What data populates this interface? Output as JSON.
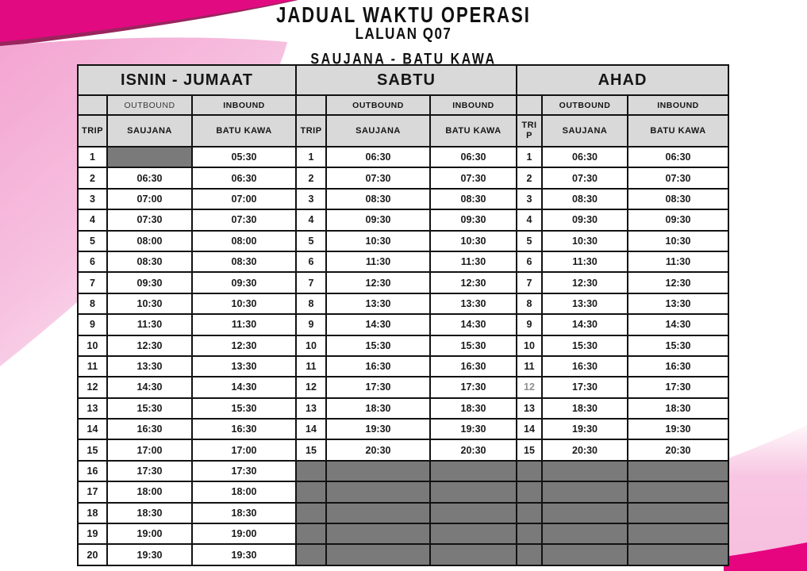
{
  "title": {
    "line1": "JADUAL WAKTU OPERASI",
    "line2": "LALUAN Q07",
    "line3": "SAUJANA - BATU KAWA"
  },
  "colors": {
    "accent_magenta": "#e20a81",
    "bottom_magenta": "#e6047f",
    "light_pink": "#f5b0d7",
    "pale_pink": "#fdeef7",
    "header_grey": "#d9d9d9",
    "blocked_grey": "#7a7a7a"
  },
  "sections": [
    {
      "day": "ISNIN - JUMAAT",
      "direction_headers": {
        "outbound": "OUTBOUND",
        "inbound": "INBOUND"
      },
      "columns": {
        "trip": "TRIP",
        "outbound": "SAUJANA",
        "inbound": "BATU KAWA"
      },
      "rows": [
        {
          "trip": "1",
          "out": null,
          "in": "05:30"
        },
        {
          "trip": "2",
          "out": "06:30",
          "in": "06:30"
        },
        {
          "trip": "3",
          "out": "07:00",
          "in": "07:00"
        },
        {
          "trip": "4",
          "out": "07:30",
          "in": "07:30"
        },
        {
          "trip": "5",
          "out": "08:00",
          "in": "08:00"
        },
        {
          "trip": "6",
          "out": "08:30",
          "in": "08:30"
        },
        {
          "trip": "7",
          "out": "09:30",
          "in": "09:30"
        },
        {
          "trip": "8",
          "out": "10:30",
          "in": "10:30"
        },
        {
          "trip": "9",
          "out": "11:30",
          "in": "11:30"
        },
        {
          "trip": "10",
          "out": "12:30",
          "in": "12:30"
        },
        {
          "trip": "11",
          "out": "13:30",
          "in": "13:30"
        },
        {
          "trip": "12",
          "out": "14:30",
          "in": "14:30"
        },
        {
          "trip": "13",
          "out": "15:30",
          "in": "15:30"
        },
        {
          "trip": "14",
          "out": "16:30",
          "in": "16:30"
        },
        {
          "trip": "15",
          "out": "17:00",
          "in": "17:00"
        },
        {
          "trip": "16",
          "out": "17:30",
          "in": "17:30"
        },
        {
          "trip": "17",
          "out": "18:00",
          "in": "18:00"
        },
        {
          "trip": "18",
          "out": "18:30",
          "in": "18:30"
        },
        {
          "trip": "19",
          "out": "19:00",
          "in": "19:00"
        },
        {
          "trip": "20",
          "out": "19:30",
          "in": "19:30"
        }
      ]
    },
    {
      "day": "SABTU",
      "direction_headers": {
        "outbound": "OUTBOUND",
        "inbound": "INBOUND"
      },
      "columns": {
        "trip": "TRIP",
        "outbound": "SAUJANA",
        "inbound": "BATU KAWA"
      },
      "rows": [
        {
          "trip": "1",
          "out": "06:30",
          "in": "06:30"
        },
        {
          "trip": "2",
          "out": "07:30",
          "in": "07:30"
        },
        {
          "trip": "3",
          "out": "08:30",
          "in": "08:30"
        },
        {
          "trip": "4",
          "out": "09:30",
          "in": "09:30"
        },
        {
          "trip": "5",
          "out": "10:30",
          "in": "10:30"
        },
        {
          "trip": "6",
          "out": "11:30",
          "in": "11:30"
        },
        {
          "trip": "7",
          "out": "12:30",
          "in": "12:30"
        },
        {
          "trip": "8",
          "out": "13:30",
          "in": "13:30"
        },
        {
          "trip": "9",
          "out": "14:30",
          "in": "14:30"
        },
        {
          "trip": "10",
          "out": "15:30",
          "in": "15:30"
        },
        {
          "trip": "11",
          "out": "16:30",
          "in": "16:30"
        },
        {
          "trip": "12",
          "out": "17:30",
          "in": "17:30"
        },
        {
          "trip": "13",
          "out": "18:30",
          "in": "18:30"
        },
        {
          "trip": "14",
          "out": "19:30",
          "in": "19:30"
        },
        {
          "trip": "15",
          "out": "20:30",
          "in": "20:30"
        },
        {
          "trip": null,
          "out": null,
          "in": null
        },
        {
          "trip": null,
          "out": null,
          "in": null
        },
        {
          "trip": null,
          "out": null,
          "in": null
        },
        {
          "trip": null,
          "out": null,
          "in": null
        },
        {
          "trip": null,
          "out": null,
          "in": null
        }
      ]
    },
    {
      "day": "AHAD",
      "direction_headers": {
        "outbound": "OUTBOUND",
        "inbound": "INBOUND"
      },
      "columns": {
        "trip": "TRIP",
        "outbound": "SAUJANA",
        "inbound": "BATU KAWA"
      },
      "rows": [
        {
          "trip": "1",
          "out": "06:30",
          "in": "06:30"
        },
        {
          "trip": "2",
          "out": "07:30",
          "in": "07:30"
        },
        {
          "trip": "3",
          "out": "08:30",
          "in": "08:30"
        },
        {
          "trip": "4",
          "out": "09:30",
          "in": "09:30"
        },
        {
          "trip": "5",
          "out": "10:30",
          "in": "10:30"
        },
        {
          "trip": "6",
          "out": "11:30",
          "in": "11:30"
        },
        {
          "trip": "7",
          "out": "12:30",
          "in": "12:30"
        },
        {
          "trip": "8",
          "out": "13:30",
          "in": "13:30"
        },
        {
          "trip": "9",
          "out": "14:30",
          "in": "14:30"
        },
        {
          "trip": "10",
          "out": "15:30",
          "in": "15:30"
        },
        {
          "trip": "11",
          "out": "16:30",
          "in": "16:30"
        },
        {
          "trip": "12",
          "tripMuted": true,
          "out": "17:30",
          "in": "17:30"
        },
        {
          "trip": "13",
          "out": "18:30",
          "in": "18:30"
        },
        {
          "trip": "14",
          "out": "19:30",
          "in": "19:30"
        },
        {
          "trip": "15",
          "out": "20:30",
          "in": "20:30"
        },
        {
          "trip": null,
          "out": null,
          "in": null
        },
        {
          "trip": null,
          "out": null,
          "in": null
        },
        {
          "trip": null,
          "out": null,
          "in": null
        },
        {
          "trip": null,
          "out": null,
          "in": null
        },
        {
          "trip": null,
          "out": null,
          "in": null
        }
      ]
    }
  ]
}
